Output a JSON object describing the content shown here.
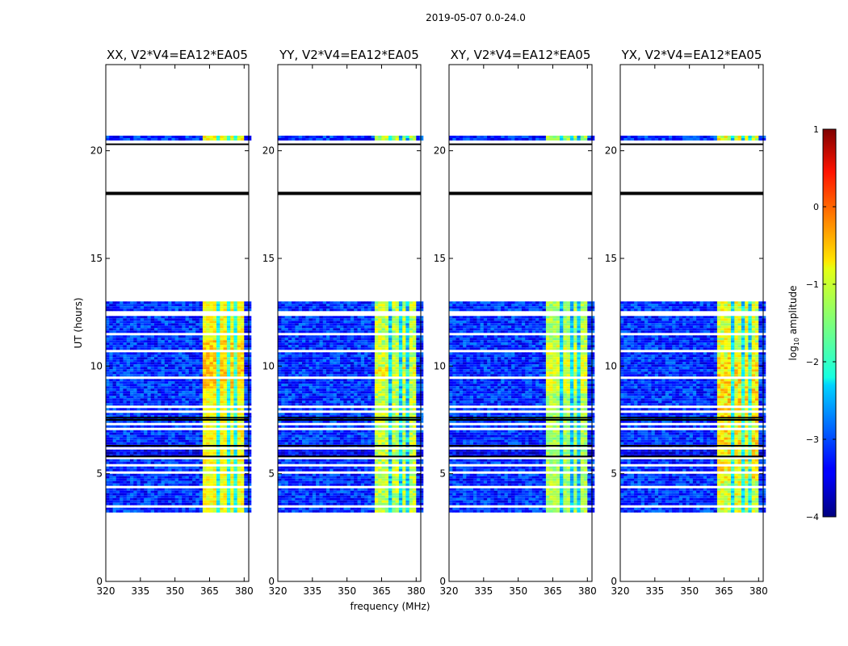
{
  "chart_data": {
    "type": "heatmap",
    "suptitle": "2019-05-07 0.0-24.0",
    "xlabel": "frequency (MHz)",
    "ylabel": "UT (hours)",
    "xlim": [
      320,
      382
    ],
    "ylim": [
      0,
      24
    ],
    "xticks": [
      320,
      335,
      350,
      365,
      380
    ],
    "yticks": [
      0,
      5,
      10,
      15,
      20
    ],
    "panels": [
      {
        "title": "XX, V2*V4=EA12*EA05",
        "band_level": [
          -1.2,
          -0.6
        ],
        "band_bright_rows": [
          9,
          11.2
        ]
      },
      {
        "title": "YY, V2*V4=EA12*EA05",
        "band_level": [
          -1.6,
          -0.8
        ],
        "band_bright_rows": [
          9.5,
          10
        ]
      },
      {
        "title": "XY, V2*V4=EA12*EA05",
        "band_level": [
          -1.6,
          -1.0
        ],
        "band_bright_rows": [
          8.8,
          11
        ]
      },
      {
        "title": "YX, V2*V4=EA12*EA05",
        "band_level": [
          -1.5,
          -0.6
        ],
        "band_bright_rows": [
          4.8,
          10.5
        ]
      }
    ],
    "data_blocks_hours": [
      [
        3.2,
        7.7
      ],
      [
        7.6,
        13.0
      ],
      [
        20.4,
        20.7
      ]
    ],
    "flag_lines_hours": [
      18.0,
      20.3,
      7.6,
      7.5,
      6.3,
      5.8
    ],
    "gaps_hours": [
      [
        3.25,
        3.3
      ],
      [
        3.45,
        3.55
      ],
      [
        3.6,
        3.65
      ],
      [
        4.05,
        4.1
      ],
      [
        4.4,
        4.45
      ],
      [
        5.1,
        5.2
      ],
      [
        5.45,
        5.5
      ],
      [
        5.75,
        5.82
      ],
      [
        6.2,
        6.3
      ],
      [
        6.7,
        6.78
      ],
      [
        6.95,
        7.0
      ],
      [
        7.1,
        7.15
      ],
      [
        7.3,
        7.4
      ],
      [
        7.9,
        8.0
      ],
      [
        8.15,
        8.25
      ],
      [
        8.55,
        8.6
      ],
      [
        9.0,
        9.05
      ],
      [
        9.5,
        9.55
      ],
      [
        10.1,
        10.15
      ],
      [
        10.7,
        10.75
      ],
      [
        11.0,
        11.05
      ],
      [
        11.45,
        11.6
      ],
      [
        12.4,
        12.6
      ],
      [
        20.45,
        20.5
      ]
    ],
    "band_freq_range_mhz": [
      362,
      379
    ],
    "band_dark_channels_mhz": [
      367.5,
      372,
      376
    ],
    "colorbar": {
      "label": "log$_{10}$ amplitude",
      "label_main": "log",
      "label_sub": "10",
      "label_rest": " amplitude",
      "min": -4,
      "max": 1,
      "ticks": [
        -4,
        -3,
        -2,
        -1,
        0,
        1
      ],
      "colormap": "jet"
    }
  }
}
